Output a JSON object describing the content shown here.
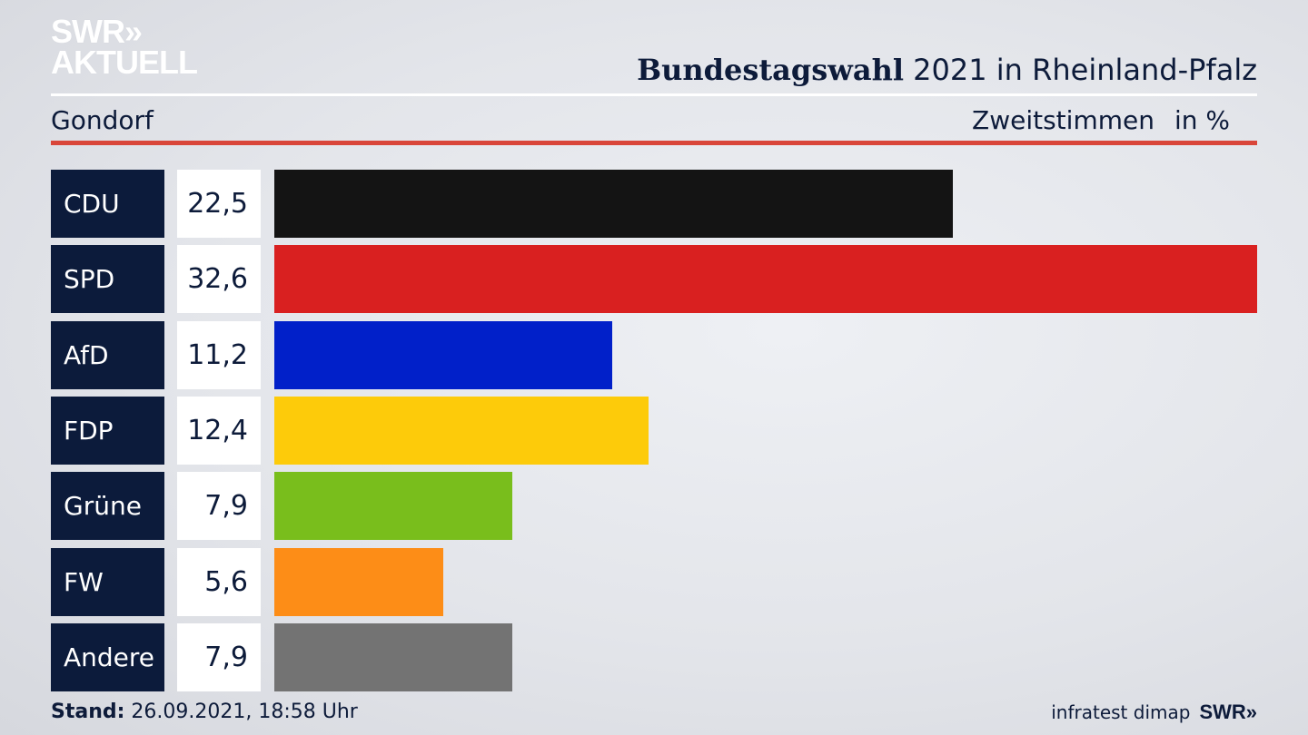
{
  "header": {
    "logo_line1": "SWR»",
    "logo_line2": "AKTUELL",
    "title_bold": "Bundestagswahl",
    "title_rest": " 2021 in Rheinland-Pfalz",
    "location": "Gondorf",
    "measure": "Zweitstimmen",
    "unit": "in %"
  },
  "chart_data": {
    "type": "bar",
    "orientation": "horizontal",
    "categories": [
      "CDU",
      "SPD",
      "AfD",
      "FDP",
      "Grüne",
      "FW",
      "Andere"
    ],
    "values": [
      22.5,
      32.6,
      11.2,
      12.4,
      7.9,
      5.6,
      7.9
    ],
    "value_labels": [
      "22,5",
      "32,6",
      "11,2",
      "12,4",
      "7,9",
      "5,6",
      "7,9"
    ],
    "colors": [
      "#141414",
      "#d92020",
      "#0120c9",
      "#fdcb0a",
      "#79be1c",
      "#fd8d17",
      "#737373"
    ],
    "xlim": [
      0,
      32.6
    ]
  },
  "footer": {
    "stand_label": "Stand:",
    "stand_value": " 26.09.2021, 18:58 Uhr",
    "source": "infratest dimap",
    "brand": "SWR»"
  }
}
